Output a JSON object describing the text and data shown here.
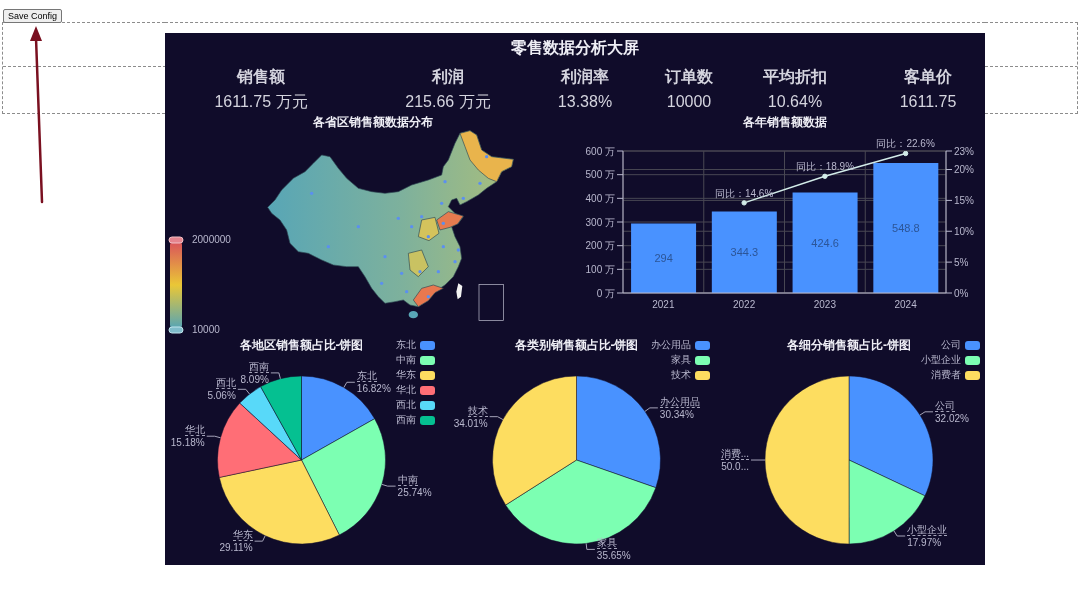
{
  "chart_data": [
    {
      "type": "other",
      "annotations": [
        "Save Config"
      ]
    },
    {
      "type": "other",
      "title": "零售数据分析大屏",
      "annotations": [
        "销售额",
        "1611.75 万元",
        "利润",
        "215.66 万元",
        "利润率",
        "13.38%",
        "订单数",
        "10000",
        "平均折扣",
        "10.64%",
        "客单价",
        "1611.75"
      ]
    },
    {
      "type": "other",
      "title": "各省区销售额数据分布",
      "annotations": [
        "2000000",
        "10000"
      ]
    },
    {
      "type": "bar",
      "title": "各年销售额数据",
      "categories": [
        "2021",
        "2022",
        "2023",
        "2024"
      ],
      "series": [
        {
          "type": "bar",
          "color": "#4992ff",
          "values": [
            294,
            344.3,
            424.6,
            548.8
          ],
          "value_labels": [
            "294",
            "344.3",
            "424.6",
            "548.8"
          ]
        },
        {
          "type": "line",
          "axis": "y2",
          "color": "#d2ebe8",
          "values": [
            null,
            14.6,
            18.9,
            22.6
          ],
          "value_labels": [
            null,
            "同比：14.6%",
            "同比：18.9%",
            "同比：22.6%"
          ]
        }
      ],
      "ylim": [
        0,
        600
      ],
      "yticks": [
        {
          "value": 0,
          "label": "0 万"
        },
        {
          "value": 100,
          "label": "100 万"
        },
        {
          "value": 200,
          "label": "200 万"
        },
        {
          "value": 300,
          "label": "300 万"
        },
        {
          "value": 400,
          "label": "400 万"
        },
        {
          "value": 500,
          "label": "500 万"
        },
        {
          "value": 600,
          "label": "600 万"
        }
      ],
      "y2lim": [
        0,
        23
      ],
      "y2ticks": [
        {
          "value": 0,
          "label": "0%"
        },
        {
          "value": 5,
          "label": "5%"
        },
        {
          "value": 10,
          "label": "10%"
        },
        {
          "value": 15,
          "label": "15%"
        },
        {
          "value": 20,
          "label": "20%"
        },
        {
          "value": 23,
          "label": "23%"
        }
      ],
      "grid": true,
      "marker": "circle",
      "line_style": "solid"
    },
    {
      "type": "pie",
      "title": "各地区销售额占比-饼图",
      "categories": [
        "东北",
        "中南",
        "华东",
        "华北",
        "西北",
        "西南"
      ],
      "values": [
        16.82,
        25.74,
        29.11,
        15.18,
        5.06,
        8.09
      ],
      "colors": [
        "#4992ff",
        "#7cffb2",
        "#fddd60",
        "#ff6e76",
        "#58d9f9",
        "#05c091"
      ],
      "value_labels": [
        "16.82%",
        "25.74%",
        "29.11%",
        "15.18%",
        "5.06%",
        "8.09%"
      ],
      "legend": "top right"
    },
    {
      "type": "pie",
      "title": "各类别销售额占比-饼图",
      "categories": [
        "办公用品",
        "家具",
        "技术"
      ],
      "values": [
        30.34,
        35.65,
        34.01
      ],
      "colors": [
        "#4992ff",
        "#7cffb2",
        "#fddd60"
      ],
      "value_labels": [
        "30.34%",
        "35.65%",
        "34.01%"
      ],
      "legend": "top right"
    },
    {
      "type": "pie",
      "title": "各细分销售额占比-饼图",
      "categories": [
        "公司",
        "小型企业",
        "消费者"
      ],
      "values": [
        32.02,
        17.97,
        50.01
      ],
      "colors": [
        "#4992ff",
        "#7cffb2",
        "#fddd60"
      ],
      "value_labels": [
        "32.02%",
        "17.97%",
        "50.0..."
      ],
      "annotations": [
        {
          "text": "消费...",
          "x": "消费者"
        }
      ],
      "legend": "top right"
    }
  ]
}
